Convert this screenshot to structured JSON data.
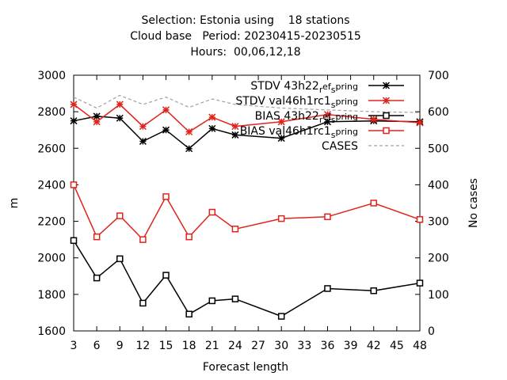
{
  "chart_data": {
    "type": "line",
    "title_lines": [
      "Selection: Estonia using    18 stations",
      "Cloud base   Period: 20230415-20230515",
      "Hours:  00,06,12,18"
    ],
    "xlabel": "Forecast length",
    "ylabel": "m",
    "y2label": "No cases",
    "xlim": [
      3,
      48
    ],
    "ylim": [
      1600,
      3000
    ],
    "y2lim": [
      0,
      700
    ],
    "xticks": [
      3,
      6,
      9,
      12,
      15,
      18,
      21,
      24,
      27,
      30,
      33,
      36,
      39,
      42,
      45,
      48
    ],
    "yticks": [
      1600,
      1800,
      2000,
      2200,
      2400,
      2600,
      2800,
      3000
    ],
    "y2ticks": [
      0,
      100,
      200,
      300,
      400,
      500,
      600,
      700
    ],
    "legend_position": "top-right",
    "colors": {
      "black": "#000000",
      "red": "#e0241b",
      "gray": "#a0a0a4"
    },
    "series": [
      {
        "name": "STDV 43h22_r ef_s pring",
        "legend_label": "STDV 43h22",
        "legend_subs": [
          "r",
          "ef",
          "s",
          "pring"
        ],
        "marker": "star",
        "color": "#000000",
        "axis": "y",
        "x": [
          3,
          6,
          9,
          12,
          15,
          18,
          21,
          24,
          30,
          36,
          42,
          48
        ],
        "values": [
          2750,
          2775,
          2765,
          2638,
          2700,
          2598,
          2708,
          2673,
          2655,
          2745,
          2750,
          2745
        ]
      },
      {
        "name": "STDV val46h1rc1_s pring",
        "legend_label": "STDV val46h1rc1",
        "legend_subs": [
          "s",
          "pring"
        ],
        "marker": "star",
        "color": "#e0241b",
        "axis": "y",
        "x": [
          3,
          6,
          9,
          12,
          15,
          18,
          21,
          24,
          30,
          36,
          42,
          48
        ],
        "values": [
          2840,
          2745,
          2840,
          2720,
          2810,
          2690,
          2770,
          2720,
          2745,
          2785,
          2758,
          2740
        ]
      },
      {
        "name": "BIAS 43h22_r ef_s pring",
        "legend_label": "BIAS 43h22",
        "legend_subs": [
          "r",
          "ef",
          "s",
          "pring"
        ],
        "marker": "square",
        "color": "#000000",
        "axis": "y",
        "x": [
          3,
          6,
          9,
          12,
          15,
          18,
          21,
          24,
          30,
          36,
          42,
          48
        ],
        "values": [
          2095,
          1890,
          1995,
          1752,
          1905,
          1692,
          1765,
          1775,
          1680,
          1832,
          1820,
          1862
        ]
      },
      {
        "name": "BIAS val46h1rc1_s pring",
        "legend_label": "BIAS val46h1rc1",
        "legend_subs": [
          "s",
          "pring"
        ],
        "marker": "square",
        "color": "#e0241b",
        "axis": "y",
        "x": [
          3,
          6,
          9,
          12,
          15,
          18,
          21,
          24,
          30,
          36,
          42,
          48
        ],
        "values": [
          2400,
          2115,
          2230,
          2100,
          2335,
          2115,
          2250,
          2158,
          2215,
          2225,
          2300,
          2210
        ]
      },
      {
        "name": "CASES",
        "legend_label": "CASES",
        "legend_subs": [],
        "marker": "none",
        "dashed": true,
        "color": "#a0a0a4",
        "axis": "y2",
        "x": [
          3,
          6,
          9,
          12,
          15,
          18,
          21,
          24,
          30,
          36,
          42,
          48
        ],
        "values": [
          640,
          610,
          645,
          620,
          640,
          612,
          635,
          620,
          610,
          605,
          600,
          598
        ]
      }
    ]
  }
}
